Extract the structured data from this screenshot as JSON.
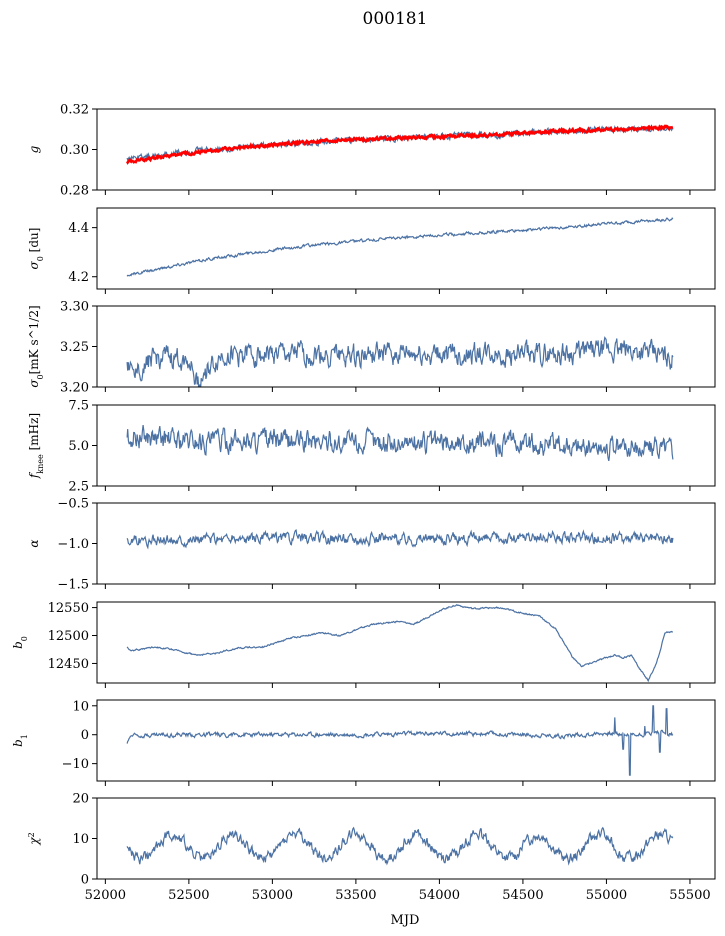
{
  "figure": {
    "title": "000181",
    "xlabel": "MJD",
    "xlim": [
      51950,
      55650
    ],
    "xticks": [
      52000,
      52500,
      53000,
      53500,
      54000,
      54500,
      55000,
      55500
    ],
    "x_start": 52130,
    "x_end": 55400
  },
  "colors": {
    "series": "#4c72a4",
    "fit": "#ff0000",
    "axis": "#000000"
  },
  "chart_data": [
    {
      "type": "line",
      "ylabel_base": "g",
      "ylabel_sub": "",
      "ylabel_unit": "",
      "ylim": [
        0.28,
        0.32
      ],
      "yticks": [
        0.28,
        0.3,
        0.32
      ],
      "ytick_labels": [
        "0.28",
        "0.30",
        "0.32"
      ],
      "series": [
        {
          "x": [
            52130,
            52300,
            52500,
            52800,
            53100,
            53500,
            53900,
            54300,
            54700,
            55100,
            55400
          ],
          "y": [
            0.296,
            0.297,
            0.299,
            0.301,
            0.303,
            0.305,
            0.306,
            0.307,
            0.309,
            0.31,
            0.311
          ],
          "noise": 0.0012
        },
        {
          "name": "",
          "color": "#ff0000",
          "x": [
            52130,
            52300,
            52500,
            52800,
            53100,
            53500,
            53900,
            54300,
            54700,
            55100,
            55400
          ],
          "y": [
            0.294,
            0.296,
            0.298,
            0.301,
            0.303,
            0.305,
            0.306,
            0.307,
            0.309,
            0.31,
            0.311
          ],
          "noise": 0.0006
        }
      ]
    },
    {
      "type": "line",
      "ylabel_base": "σ",
      "ylabel_sub": "0",
      "ylabel_unit": " [du]",
      "ylim": [
        4.15,
        4.48
      ],
      "yticks": [
        4.2,
        4.4
      ],
      "ytick_labels": [
        "4.2",
        "4.4"
      ],
      "series": [
        {
          "x": [
            52130,
            52300,
            52600,
            52900,
            53200,
            53600,
            54000,
            54400,
            54800,
            55200,
            55400
          ],
          "y": [
            4.205,
            4.23,
            4.27,
            4.3,
            4.325,
            4.35,
            4.37,
            4.385,
            4.405,
            4.425,
            4.435
          ],
          "noise": 0.005
        }
      ]
    },
    {
      "type": "line",
      "ylabel_base": "σ",
      "ylabel_sub": "0",
      "ylabel_unit": "[mK s^1/2]",
      "ylim": [
        3.2,
        3.3
      ],
      "yticks": [
        3.2,
        3.25,
        3.3
      ],
      "ytick_labels": [
        "3.20",
        "3.25",
        "3.30"
      ],
      "series": [
        {
          "x": [
            52130,
            52300,
            52500,
            52550,
            52700,
            53000,
            53500,
            54000,
            54500,
            55000,
            55200,
            55400
          ],
          "y": [
            3.22,
            3.235,
            3.235,
            3.205,
            3.24,
            3.24,
            3.24,
            3.24,
            3.24,
            3.245,
            3.245,
            3.235
          ],
          "noise": 0.011
        }
      ]
    },
    {
      "type": "line",
      "ylabel_base": "f",
      "ylabel_sub": "knee",
      "ylabel_unit": " [mHz]",
      "ylim": [
        2.5,
        7.5
      ],
      "yticks": [
        2.5,
        5.0,
        7.5
      ],
      "ytick_labels": [
        "2.5",
        "5.0",
        "7.5"
      ],
      "series": [
        {
          "x": [
            52130,
            52500,
            53000,
            53500,
            54000,
            54500,
            55000,
            55400
          ],
          "y": [
            5.6,
            5.3,
            5.3,
            5.2,
            5.2,
            5.1,
            4.9,
            4.9
          ],
          "noise": 0.55
        }
      ]
    },
    {
      "type": "line",
      "ylabel_base": "α",
      "ylabel_sub": "",
      "ylabel_unit": "",
      "ylim": [
        -1.5,
        -0.5
      ],
      "yticks": [
        -1.5,
        -1.0,
        -0.5
      ],
      "ytick_labels": [
        "−1.5",
        "−1.0",
        "−0.5"
      ],
      "series": [
        {
          "x": [
            52130,
            52600,
            53100,
            53600,
            54100,
            54600,
            55100,
            55400
          ],
          "y": [
            -0.96,
            -0.95,
            -0.93,
            -0.94,
            -0.94,
            -0.93,
            -0.94,
            -0.95
          ],
          "noise": 0.055
        }
      ]
    },
    {
      "type": "line",
      "ylabel_base": "b",
      "ylabel_sub": "0",
      "ylabel_unit": "",
      "ylim": [
        12415,
        12560
      ],
      "yticks": [
        12450,
        12500,
        12550
      ],
      "ytick_labels": [
        "12450",
        "12500",
        "12550"
      ],
      "series": [
        {
          "x": [
            52130,
            52150,
            52300,
            52400,
            52550,
            52650,
            52800,
            52950,
            53100,
            53300,
            53400,
            53600,
            53750,
            53850,
            54000,
            54100,
            54200,
            54350,
            54500,
            54600,
            54700,
            54800,
            54850,
            54950,
            55050,
            55100,
            55150,
            55200,
            55250,
            55300,
            55350,
            55400
          ],
          "y": [
            12480,
            12473,
            12480,
            12475,
            12465,
            12468,
            12478,
            12480,
            12495,
            12505,
            12500,
            12520,
            12525,
            12520,
            12545,
            12555,
            12548,
            12550,
            12540,
            12535,
            12510,
            12460,
            12445,
            12455,
            12465,
            12460,
            12465,
            12440,
            12420,
            12450,
            12505,
            12507
          ],
          "noise": 1.2
        }
      ]
    },
    {
      "type": "line",
      "ylabel_base": "b",
      "ylabel_sub": "1",
      "ylabel_unit": "",
      "ylim": [
        -16,
        12
      ],
      "yticks": [
        -10,
        0,
        10
      ],
      "ytick_labels": [
        "−10",
        "0",
        "10"
      ],
      "series": [
        {
          "x": [
            52130,
            52150,
            52500,
            53000,
            53500,
            54000,
            54500,
            54750,
            55000,
            55100,
            55200,
            55300,
            55400
          ],
          "y": [
            -3,
            0,
            0,
            0,
            0,
            0.5,
            0,
            -0.5,
            0.5,
            0,
            0,
            1,
            0
          ],
          "noise": 0.6,
          "spikes": [
            [
              55050,
              6
            ],
            [
              55100,
              -5
            ],
            [
              55140,
              -14
            ],
            [
              55230,
              3
            ],
            [
              55280,
              10
            ],
            [
              55320,
              -6
            ],
            [
              55360,
              9
            ]
          ]
        }
      ]
    },
    {
      "type": "line",
      "ylabel_base": "χ",
      "ylabel_sub": "",
      "ylabel_unit": "",
      "ylim": [
        0,
        20
      ],
      "yticks": [
        0,
        10,
        20
      ],
      "ytick_labels": [
        "0",
        "10",
        "20"
      ],
      "series": [
        {
          "x": [
            52130,
            55400
          ],
          "y": [
            8,
            8
          ],
          "noise": 1.1,
          "period": 365,
          "amplitude": 3,
          "phase": 52310
        }
      ]
    }
  ]
}
